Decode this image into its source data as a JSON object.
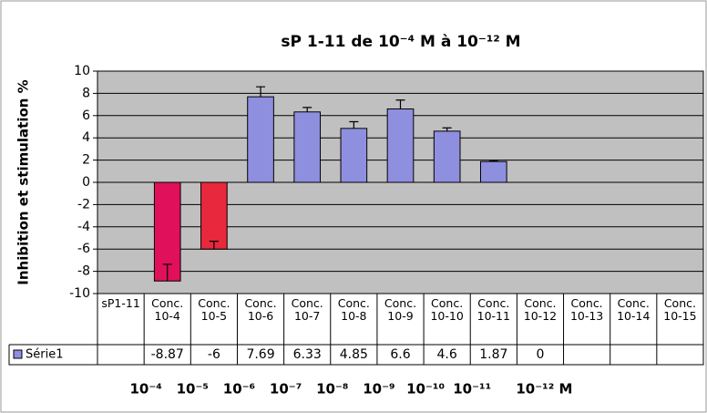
{
  "chart_data": {
    "type": "bar",
    "title": "sP 1-11 de 10⁻⁴ M à 10⁻¹² M",
    "y_label": "Inhibition  et stimulation  %",
    "categories": [
      "sP1-11",
      "Conc. 10-4",
      "Conc. 10-5",
      "Conc. 10-6",
      "Conc. 10-7",
      "Conc. 10-8",
      "Conc. 10-9",
      "Conc. 10-10",
      "Conc. 10-11",
      "Conc. 10-12",
      "Conc. 10-13",
      "Conc. 10-14",
      "Conc. 10-15"
    ],
    "series": [
      {
        "name": "Série1",
        "color": "#8f8fe0",
        "values": [
          null,
          -8.87,
          -6,
          7.69,
          6.33,
          4.85,
          6.6,
          4.6,
          1.87,
          0,
          null,
          null,
          null
        ],
        "errors": [
          null,
          1.5,
          0.7,
          0.9,
          0.4,
          0.6,
          0.8,
          0.3,
          0.1,
          null,
          null,
          null,
          null
        ],
        "colors": [
          "#8f8fe0",
          "#e0105a",
          "#e8283c",
          "#8f8fe0",
          "#8f8fe0",
          "#8f8fe0",
          "#8f8fe0",
          "#8f8fe0",
          "#8f8fe0",
          "#8f8fe0",
          "#8f8fe0",
          "#8f8fe0",
          "#8f8fe0"
        ]
      }
    ],
    "ylim": [
      -10,
      10
    ],
    "yticks": [
      -10,
      -8,
      -6,
      -4,
      -2,
      0,
      2,
      4,
      6,
      8,
      10
    ],
    "grid": true,
    "plot_background": "#c0c0c0",
    "bottom_labels": [
      "10⁻⁴",
      "10⁻⁵",
      "10⁻⁶",
      "10⁻⁷",
      "10⁻⁸",
      "10⁻⁹",
      "10⁻¹⁰",
      "10⁻¹¹",
      "10⁻¹² M"
    ]
  }
}
